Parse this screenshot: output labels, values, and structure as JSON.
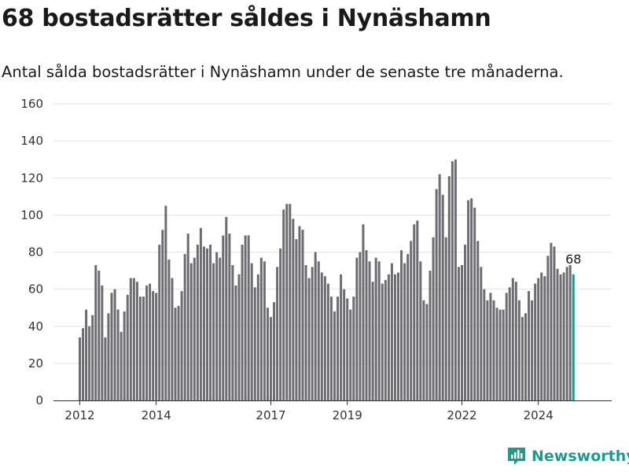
{
  "title": "68 bostadsrätter såldes i Nynäshamn",
  "subtitle": "Antal sålda bostadsrätter i Nynäshamn under de senaste tre månaderna.",
  "brand": {
    "name": "Newsworthy"
  },
  "colors": {
    "bar": "#6d6c71",
    "highlight": "#1e9b8c",
    "grid": "#e3e3e3"
  },
  "chart_data": {
    "type": "bar",
    "title": "68 bostadsrätter såldes i Nynäshamn",
    "subtitle": "Antal sålda bostadsrätter i Nynäshamn under de senaste tre månaderna.",
    "xlabel": "",
    "ylabel": "",
    "ylim": [
      0,
      160
    ],
    "yticks": [
      0,
      20,
      40,
      60,
      80,
      100,
      120,
      140,
      160
    ],
    "xticks": [
      "2012",
      "2014",
      "2017",
      "2019",
      "2022",
      "2024"
    ],
    "grid": true,
    "start": "2012-01",
    "frequency": "monthly",
    "highlight_last": true,
    "annotation": {
      "label": "68",
      "value": 68
    },
    "values": [
      34,
      39,
      49,
      40,
      46,
      73,
      70,
      62,
      34,
      47,
      58,
      60,
      49,
      37,
      48,
      57,
      66,
      66,
      64,
      56,
      56,
      62,
      63,
      59,
      58,
      84,
      92,
      105,
      76,
      66,
      50,
      51,
      59,
      79,
      90,
      74,
      77,
      84,
      93,
      83,
      82,
      84,
      74,
      80,
      77,
      89,
      99,
      90,
      73,
      62,
      68,
      84,
      89,
      89,
      74,
      61,
      68,
      77,
      75,
      50,
      45,
      53,
      72,
      82,
      103,
      106,
      106,
      98,
      87,
      94,
      92,
      73,
      66,
      72,
      80,
      75,
      69,
      67,
      63,
      56,
      48,
      56,
      68,
      60,
      55,
      49,
      56,
      77,
      80,
      95,
      81,
      75,
      64,
      77,
      75,
      63,
      65,
      68,
      74,
      68,
      69,
      81,
      74,
      79,
      86,
      95,
      97,
      75,
      54,
      52,
      70,
      88,
      114,
      122,
      111,
      88,
      121,
      129,
      130,
      72,
      73,
      84,
      108,
      109,
      104,
      86,
      72,
      60,
      54,
      58,
      54,
      50,
      49,
      49,
      58,
      61,
      66,
      64,
      54,
      45,
      47,
      59,
      54,
      63,
      66,
      69,
      67,
      78,
      85,
      83,
      71,
      68,
      69,
      72,
      73,
      68
    ]
  }
}
